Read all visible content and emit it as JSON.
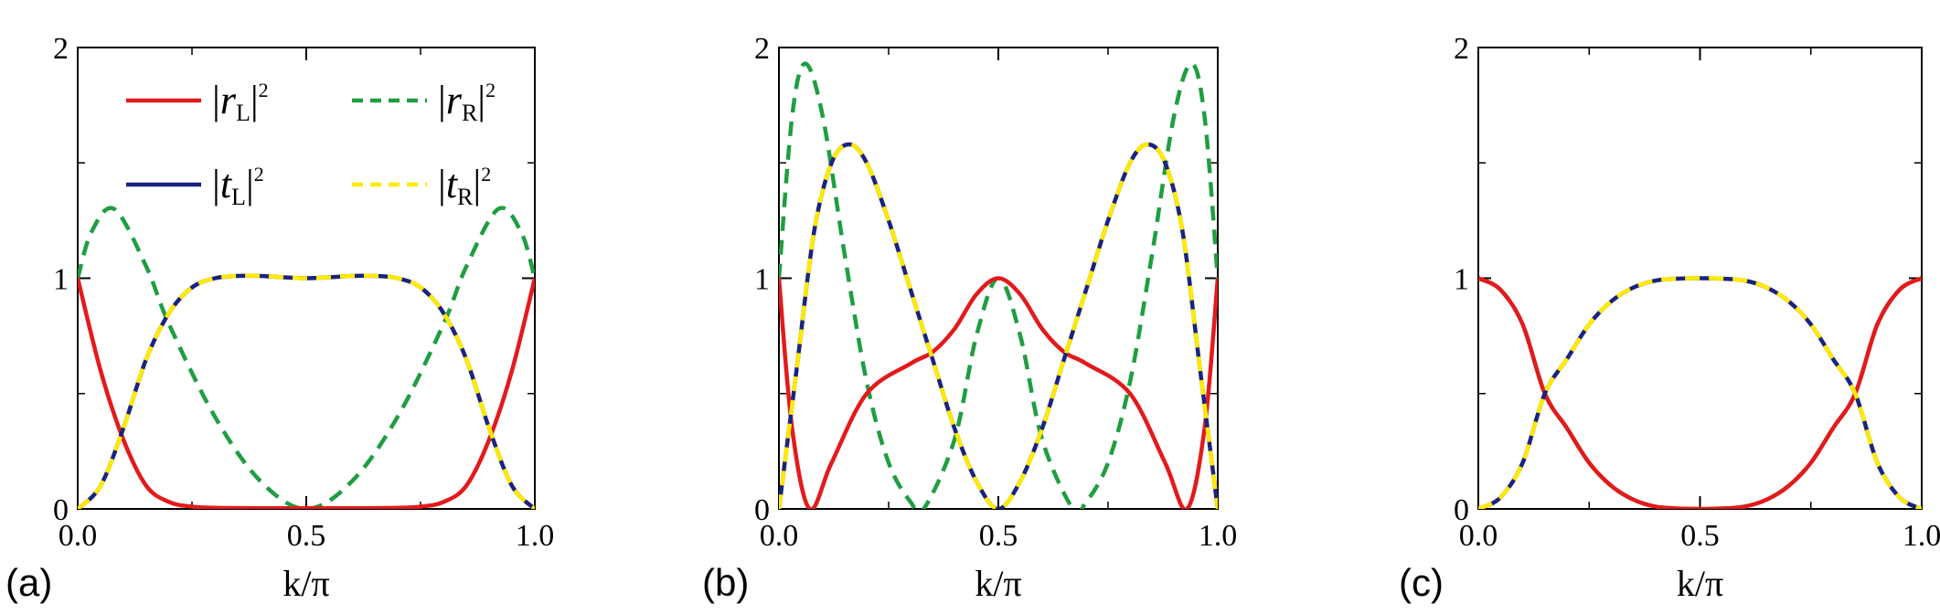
{
  "colors": {
    "r_L": "#e31a1c",
    "t_L": "#1a237e",
    "r_R": "#1f9e40",
    "t_R": "#ffea00",
    "axis": "#000000"
  },
  "legend": [
    {
      "key": "r_L",
      "letter": "r",
      "sub": "L",
      "sup": "2",
      "style": "solid"
    },
    {
      "key": "r_R",
      "letter": "r",
      "sub": "R",
      "sup": "2",
      "style": "dashed"
    },
    {
      "key": "t_L",
      "letter": "t",
      "sub": "L",
      "sup": "2",
      "style": "solid"
    },
    {
      "key": "t_R",
      "letter": "t",
      "sub": "R",
      "sup": "2",
      "style": "dashed"
    }
  ],
  "chart_data": [
    {
      "type": "line",
      "panel_label": "(a)",
      "xlabel": "k/π",
      "xlim": [
        0,
        1
      ],
      "ylim": [
        0,
        2
      ],
      "xticks": [
        "0.0",
        "0.5",
        "1.0"
      ],
      "yticks": [
        "0",
        "1",
        "2"
      ],
      "legend_placement": "top",
      "series": [
        {
          "key": "r_L",
          "x": [
            0,
            0.05,
            0.1,
            0.15,
            0.2,
            0.25,
            0.3,
            0.4,
            0.5,
            0.6,
            0.7,
            0.75,
            0.8,
            0.85,
            0.9,
            0.95,
            1
          ],
          "y": [
            1,
            0.6,
            0.3,
            0.1,
            0.03,
            0.01,
            0.005,
            0.003,
            0.003,
            0.003,
            0.005,
            0.01,
            0.03,
            0.1,
            0.3,
            0.6,
            1
          ]
        },
        {
          "key": "r_R",
          "x": [
            0,
            0.03,
            0.08,
            0.15,
            0.2,
            0.3,
            0.4,
            0.5,
            0.6,
            0.7,
            0.8,
            0.85,
            0.92,
            0.97,
            1
          ],
          "y": [
            1,
            1.2,
            1.3,
            1.05,
            0.8,
            0.4,
            0.12,
            0,
            0.12,
            0.4,
            0.8,
            1.05,
            1.3,
            1.2,
            1
          ],
          "style": "dashed"
        },
        {
          "key": "t_L",
          "x": [
            0,
            0.05,
            0.1,
            0.15,
            0.2,
            0.25,
            0.3,
            0.35,
            0.4,
            0.5,
            0.6,
            0.65,
            0.7,
            0.75,
            0.8,
            0.85,
            0.9,
            0.95,
            1
          ],
          "y": [
            0,
            0.1,
            0.35,
            0.65,
            0.85,
            0.96,
            1.0,
            1.01,
            1.01,
            1.0,
            1.01,
            1.01,
            1.0,
            0.96,
            0.85,
            0.65,
            0.35,
            0.1,
            0
          ]
        },
        {
          "key": "t_R",
          "x": [
            0,
            0.05,
            0.1,
            0.15,
            0.2,
            0.25,
            0.3,
            0.35,
            0.4,
            0.5,
            0.6,
            0.65,
            0.7,
            0.75,
            0.8,
            0.85,
            0.9,
            0.95,
            1
          ],
          "y": [
            0,
            0.1,
            0.35,
            0.65,
            0.85,
            0.96,
            1.0,
            1.01,
            1.01,
            1.0,
            1.01,
            1.01,
            1.0,
            0.96,
            0.85,
            0.65,
            0.35,
            0.1,
            0
          ],
          "style": "dashed"
        }
      ]
    },
    {
      "type": "line",
      "panel_label": "(b)",
      "xlabel": "k/π",
      "xlim": [
        0,
        1
      ],
      "ylim": [
        0,
        2
      ],
      "xticks": [
        "0.0",
        "0.5",
        "1.0"
      ],
      "yticks": [
        "0",
        "1",
        "2"
      ],
      "series": [
        {
          "key": "r_L",
          "x": [
            0,
            0.03,
            0.07,
            0.12,
            0.2,
            0.3,
            0.35,
            0.4,
            0.45,
            0.5,
            0.55,
            0.6,
            0.65,
            0.7,
            0.8,
            0.88,
            0.93,
            0.97,
            1
          ],
          "y": [
            1,
            0.35,
            0,
            0.2,
            0.5,
            0.63,
            0.68,
            0.78,
            0.93,
            1,
            0.93,
            0.78,
            0.68,
            0.63,
            0.5,
            0.2,
            0,
            0.35,
            1
          ]
        },
        {
          "key": "r_R",
          "x": [
            0,
            0.03,
            0.06,
            0.1,
            0.15,
            0.2,
            0.25,
            0.3,
            0.33,
            0.4,
            0.45,
            0.5,
            0.55,
            0.6,
            0.67,
            0.7,
            0.75,
            0.8,
            0.85,
            0.9,
            0.94,
            0.97,
            1
          ],
          "y": [
            1,
            1.7,
            1.93,
            1.7,
            1.1,
            0.55,
            0.2,
            0.03,
            0,
            0.3,
            0.75,
            1,
            0.75,
            0.3,
            0,
            0.03,
            0.2,
            0.55,
            1.1,
            1.7,
            1.93,
            1.7,
            1
          ],
          "style": "dashed"
        },
        {
          "key": "t_L",
          "x": [
            0,
            0.04,
            0.08,
            0.12,
            0.16,
            0.2,
            0.25,
            0.3,
            0.35,
            0.4,
            0.45,
            0.5,
            0.55,
            0.6,
            0.65,
            0.7,
            0.75,
            0.8,
            0.84,
            0.88,
            0.92,
            0.96,
            1
          ],
          "y": [
            0,
            0.6,
            1.2,
            1.5,
            1.58,
            1.5,
            1.25,
            0.95,
            0.65,
            0.35,
            0.12,
            0,
            0.12,
            0.35,
            0.65,
            0.95,
            1.25,
            1.5,
            1.58,
            1.5,
            1.2,
            0.6,
            0
          ]
        },
        {
          "key": "t_R",
          "x": [
            0,
            0.04,
            0.08,
            0.12,
            0.16,
            0.2,
            0.25,
            0.3,
            0.35,
            0.4,
            0.45,
            0.5,
            0.55,
            0.6,
            0.65,
            0.7,
            0.75,
            0.8,
            0.84,
            0.88,
            0.92,
            0.96,
            1
          ],
          "y": [
            0,
            0.6,
            1.2,
            1.5,
            1.58,
            1.5,
            1.25,
            0.95,
            0.65,
            0.35,
            0.12,
            0,
            0.12,
            0.35,
            0.65,
            0.95,
            1.25,
            1.5,
            1.58,
            1.5,
            1.2,
            0.6,
            0
          ],
          "style": "dashed"
        }
      ]
    },
    {
      "type": "line",
      "panel_label": "(c)",
      "xlabel": "k/π",
      "xlim": [
        0,
        1
      ],
      "ylim": [
        0,
        2
      ],
      "xticks": [
        "0.0",
        "0.5",
        "1.0"
      ],
      "yticks": [
        "0",
        "1",
        "2"
      ],
      "series": [
        {
          "key": "r_L",
          "x": [
            0,
            0.05,
            0.1,
            0.15,
            0.2,
            0.25,
            0.3,
            0.35,
            0.4,
            0.45,
            0.5,
            0.55,
            0.6,
            0.65,
            0.7,
            0.75,
            0.8,
            0.85,
            0.9,
            0.95,
            1
          ],
          "y": [
            1,
            0.95,
            0.8,
            0.5,
            0.35,
            0.2,
            0.1,
            0.04,
            0.01,
            0.002,
            0,
            0.002,
            0.01,
            0.04,
            0.1,
            0.2,
            0.35,
            0.5,
            0.8,
            0.95,
            1
          ]
        },
        {
          "key": "r_R",
          "x": [
            0,
            0.05,
            0.1,
            0.15,
            0.2,
            0.25,
            0.3,
            0.35,
            0.4,
            0.45,
            0.5,
            0.55,
            0.6,
            0.65,
            0.7,
            0.75,
            0.8,
            0.85,
            0.9,
            0.95,
            1
          ],
          "y": [
            1,
            0.95,
            0.8,
            0.5,
            0.35,
            0.2,
            0.1,
            0.04,
            0.01,
            0.002,
            0,
            0.002,
            0.01,
            0.04,
            0.1,
            0.2,
            0.35,
            0.5,
            0.8,
            0.95,
            1
          ],
          "style": "dashed"
        },
        {
          "key": "t_L",
          "x": [
            0,
            0.05,
            0.1,
            0.15,
            0.2,
            0.25,
            0.3,
            0.35,
            0.4,
            0.45,
            0.5,
            0.55,
            0.6,
            0.65,
            0.7,
            0.75,
            0.8,
            0.85,
            0.9,
            0.95,
            1
          ],
          "y": [
            0,
            0.05,
            0.2,
            0.5,
            0.65,
            0.8,
            0.9,
            0.96,
            0.99,
            0.998,
            1,
            0.998,
            0.99,
            0.96,
            0.9,
            0.8,
            0.65,
            0.5,
            0.2,
            0.05,
            0
          ]
        },
        {
          "key": "t_R",
          "x": [
            0,
            0.05,
            0.1,
            0.15,
            0.2,
            0.25,
            0.3,
            0.35,
            0.4,
            0.45,
            0.5,
            0.55,
            0.6,
            0.65,
            0.7,
            0.75,
            0.8,
            0.85,
            0.9,
            0.95,
            1
          ],
          "y": [
            0,
            0.05,
            0.2,
            0.5,
            0.65,
            0.8,
            0.9,
            0.96,
            0.99,
            0.998,
            1,
            0.998,
            0.99,
            0.96,
            0.9,
            0.8,
            0.65,
            0.5,
            0.2,
            0.05,
            0
          ],
          "style": "dashed"
        }
      ]
    }
  ]
}
